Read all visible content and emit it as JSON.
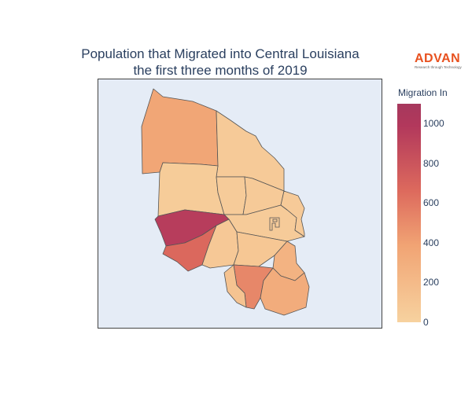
{
  "title_line1": "Population that Migrated into Central Louisiana",
  "title_line2": "the first three months of 2019",
  "logo": {
    "word": "ADVAN",
    "tagline": "Research through Technology"
  },
  "colorbar": {
    "title": "Migration In",
    "ticks": [
      "1000",
      "800",
      "600",
      "400",
      "200",
      "0"
    ],
    "range": [
      0,
      1100
    ],
    "colors": [
      "#f7d29f",
      "#f1a474",
      "#dd6a5d",
      "#b2385c"
    ]
  },
  "regions": [
    {
      "name": "north-parish",
      "value": 350
    },
    {
      "name": "northeast-parish",
      "value": 60
    },
    {
      "name": "west-central-parish",
      "value": 50
    },
    {
      "name": "central-parish-a",
      "value": 55
    },
    {
      "name": "central-parish-b",
      "value": 60
    },
    {
      "name": "rapides-east-parish",
      "value": 55
    },
    {
      "name": "east-parish",
      "value": 60
    },
    {
      "name": "west-high-parish",
      "value": 1060
    },
    {
      "name": "southwest-parish",
      "value": 750
    },
    {
      "name": "south-central-parish",
      "value": 80
    },
    {
      "name": "south-parish-a",
      "value": 90
    },
    {
      "name": "southeast-parish-a",
      "value": 250
    },
    {
      "name": "south-parish-b",
      "value": 550
    },
    {
      "name": "southeast-parish-b",
      "value": 300
    },
    {
      "name": "south-tip-parish",
      "value": 120
    }
  ]
}
